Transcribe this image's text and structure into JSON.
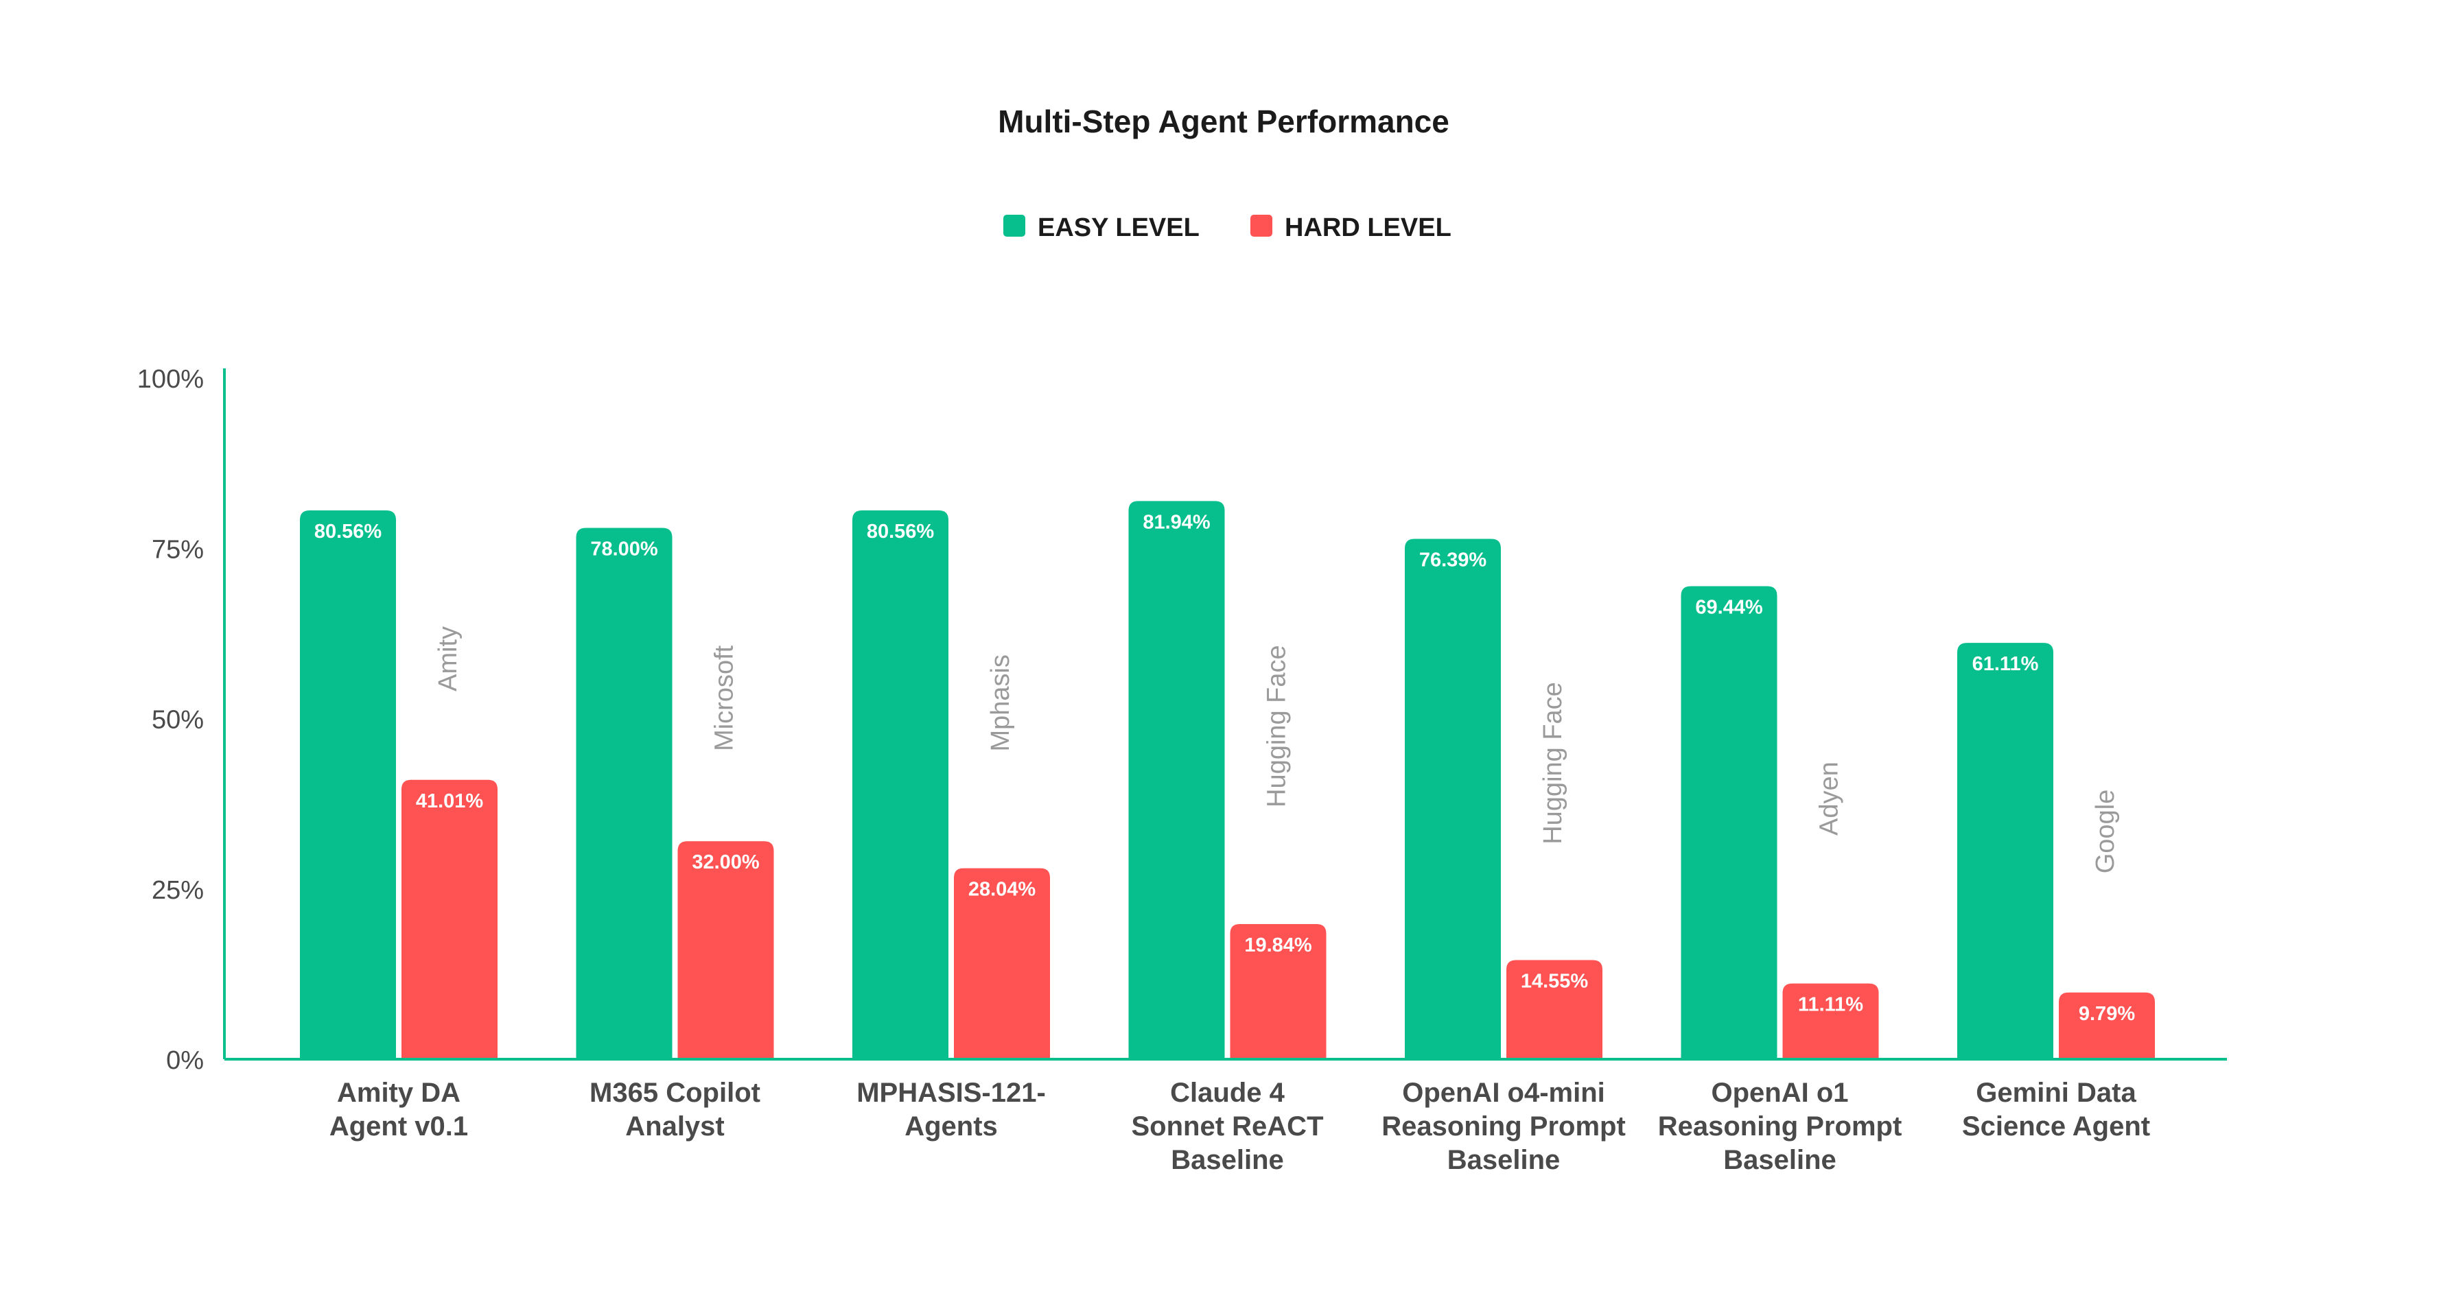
{
  "chart_data": {
    "type": "bar",
    "title": "Multi-Step Agent Performance",
    "xlabel": "",
    "ylabel": "",
    "ylim": [
      0,
      100
    ],
    "yticks": [
      0,
      25,
      50,
      75,
      100
    ],
    "ytick_labels": [
      "0%",
      "25%",
      "50%",
      "75%",
      "100%"
    ],
    "legend_position": "top-center",
    "grid": false,
    "categories": [
      [
        "Amity DA",
        "Agent v0.1"
      ],
      [
        "M365 Copilot",
        "Analyst"
      ],
      [
        "MPHASIS-121-",
        "Agents"
      ],
      [
        "Claude 4",
        "Sonnet ReACT",
        "Baseline"
      ],
      [
        "OpenAI o4-mini",
        "Reasoning Prompt",
        "Baseline"
      ],
      [
        "OpenAI o1",
        "Reasoning Prompt",
        "Baseline"
      ],
      [
        "Gemini Data",
        "Science Agent"
      ]
    ],
    "organizations": [
      "Amity",
      "Microsoft",
      "Mphasis",
      "Hugging Face",
      "Hugging Face",
      "Adyen",
      "Google"
    ],
    "series": [
      {
        "name": "EASY LEVEL",
        "color": "#06bf8c",
        "values": [
          80.56,
          78.0,
          80.56,
          81.94,
          76.39,
          69.44,
          61.11
        ],
        "labels": [
          "80.56%",
          "78.00%",
          "80.56%",
          "81.94%",
          "76.39%",
          "69.44%",
          "61.11%"
        ]
      },
      {
        "name": "HARD LEVEL",
        "color": "#ff5252",
        "values": [
          41.01,
          32.0,
          28.04,
          19.84,
          14.55,
          11.11,
          9.79
        ],
        "labels": [
          "41.01%",
          "32.00%",
          "28.04%",
          "19.84%",
          "14.55%",
          "11.11%",
          "9.79%"
        ]
      }
    ],
    "colors": {
      "axis": "#06bf8c",
      "text": "#1b1b1b",
      "tick_text": "#4a4a4a",
      "org_text": "#9a9a9a"
    }
  }
}
